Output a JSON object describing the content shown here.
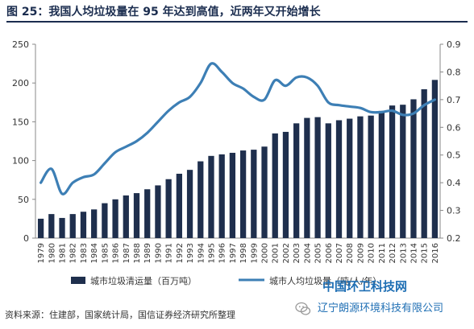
{
  "header": {
    "title": "图 25：我国人均垃圾量在 95 年达到高值，近两年又开始增长"
  },
  "source": "资料来源：住建部，国家统计局，国信证券经济研究所整理",
  "watermark": {
    "line1": "中国环卫科技网",
    "line2": "辽宁朗源环境科技有限公司"
  },
  "chart_data": {
    "type": "bar",
    "categories": [
      "1979",
      "1980",
      "1981",
      "1982",
      "1983",
      "1984",
      "1985",
      "1986",
      "1987",
      "1988",
      "1989",
      "1990",
      "1991",
      "1992",
      "1993",
      "1994",
      "1995",
      "1996",
      "1997",
      "1998",
      "1999",
      "2000",
      "2001",
      "2002",
      "2003",
      "2004",
      "2005",
      "2006",
      "2007",
      "2008",
      "2009",
      "2010",
      "2011",
      "2012",
      "2013",
      "2014",
      "2015",
      "2016"
    ],
    "series": [
      {
        "name": "城市垃圾清运量（百万吨）",
        "axis": "left",
        "kind": "bar",
        "color": "#1f2f4d",
        "values": [
          25,
          31,
          26,
          31,
          34,
          37,
          45,
          50,
          55,
          58,
          63,
          68,
          76,
          83,
          88,
          99,
          106,
          108,
          110,
          113,
          114,
          118,
          135,
          137,
          148,
          155,
          156,
          148,
          152,
          154,
          157,
          158,
          164,
          171,
          172,
          179,
          192,
          204
        ]
      },
      {
        "name": "城市人均垃圾量（吨/人/年）",
        "axis": "right",
        "kind": "line",
        "color": "#3d7fb5",
        "values": [
          0.4,
          0.45,
          0.36,
          0.4,
          0.42,
          0.43,
          0.47,
          0.51,
          0.53,
          0.55,
          0.58,
          0.62,
          0.66,
          0.69,
          0.71,
          0.76,
          0.83,
          0.8,
          0.76,
          0.74,
          0.71,
          0.7,
          0.77,
          0.75,
          0.78,
          0.78,
          0.75,
          0.69,
          0.68,
          0.675,
          0.67,
          0.655,
          0.655,
          0.66,
          0.645,
          0.65,
          0.68,
          0.7
        ]
      }
    ],
    "yleft": {
      "min": 0,
      "max": 250,
      "ticks": [
        0,
        50,
        100,
        150,
        200,
        250
      ]
    },
    "yright": {
      "min": 0.2,
      "max": 0.9,
      "ticks": [
        "0.2",
        "0.3",
        "0.4",
        "0.5",
        "0.6",
        "0.7",
        "0.8",
        "0.9"
      ]
    },
    "grid": false,
    "legend": "bottom"
  }
}
